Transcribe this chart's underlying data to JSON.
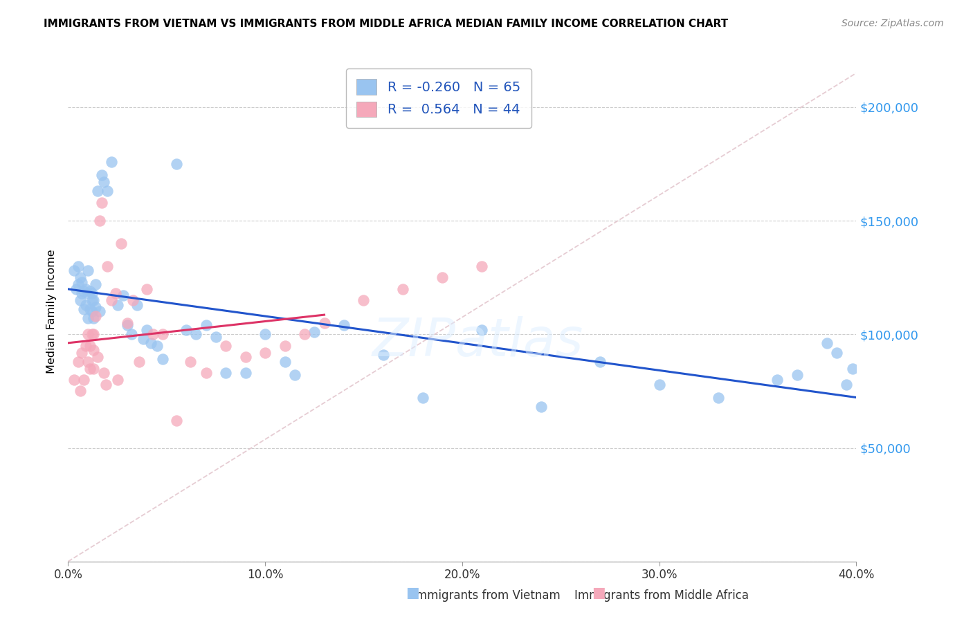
{
  "title": "IMMIGRANTS FROM VIETNAM VS IMMIGRANTS FROM MIDDLE AFRICA MEDIAN FAMILY INCOME CORRELATION CHART",
  "source": "Source: ZipAtlas.com",
  "ylabel": "Median Family Income",
  "legend_label_blue": "Immigrants from Vietnam",
  "legend_label_pink": "Immigrants from Middle Africa",
  "R_blue": -0.26,
  "N_blue": 65,
  "R_pink": 0.564,
  "N_pink": 44,
  "xlim": [
    0.0,
    0.4
  ],
  "ylim": [
    0,
    220000
  ],
  "yticks": [
    0,
    50000,
    100000,
    150000,
    200000
  ],
  "xtick_labels": [
    "0.0%",
    "10.0%",
    "20.0%",
    "30.0%",
    "40.0%"
  ],
  "xticks": [
    0.0,
    0.1,
    0.2,
    0.3,
    0.4
  ],
  "color_blue": "#99C4F0",
  "color_pink": "#F5A8BA",
  "line_blue": "#2255CC",
  "line_pink": "#DD3366",
  "line_ref_color": "#E0C0C8",
  "watermark": "ZIPatlas",
  "blue_x": [
    0.003,
    0.004,
    0.005,
    0.005,
    0.006,
    0.006,
    0.007,
    0.007,
    0.008,
    0.008,
    0.009,
    0.009,
    0.01,
    0.01,
    0.01,
    0.011,
    0.011,
    0.012,
    0.012,
    0.012,
    0.013,
    0.013,
    0.014,
    0.014,
    0.015,
    0.016,
    0.017,
    0.018,
    0.02,
    0.022,
    0.025,
    0.028,
    0.03,
    0.032,
    0.035,
    0.038,
    0.04,
    0.042,
    0.045,
    0.048,
    0.055,
    0.06,
    0.065,
    0.07,
    0.075,
    0.08,
    0.09,
    0.1,
    0.11,
    0.115,
    0.125,
    0.14,
    0.16,
    0.18,
    0.21,
    0.24,
    0.27,
    0.3,
    0.33,
    0.36,
    0.37,
    0.385,
    0.39,
    0.395,
    0.398
  ],
  "blue_y": [
    128000,
    120000,
    122000,
    130000,
    115000,
    125000,
    118000,
    123000,
    111000,
    119000,
    113000,
    120000,
    107000,
    118000,
    128000,
    111000,
    119000,
    110000,
    115000,
    118000,
    107000,
    115000,
    112000,
    122000,
    163000,
    110000,
    170000,
    167000,
    163000,
    176000,
    113000,
    117000,
    104000,
    100000,
    113000,
    98000,
    102000,
    96000,
    95000,
    89000,
    175000,
    102000,
    100000,
    104000,
    99000,
    83000,
    83000,
    100000,
    88000,
    82000,
    101000,
    104000,
    91000,
    72000,
    102000,
    68000,
    88000,
    78000,
    72000,
    80000,
    82000,
    96000,
    92000,
    78000,
    85000
  ],
  "pink_x": [
    0.003,
    0.005,
    0.006,
    0.007,
    0.008,
    0.009,
    0.01,
    0.01,
    0.011,
    0.011,
    0.012,
    0.013,
    0.013,
    0.013,
    0.014,
    0.015,
    0.016,
    0.017,
    0.018,
    0.019,
    0.02,
    0.022,
    0.024,
    0.025,
    0.027,
    0.03,
    0.033,
    0.036,
    0.04,
    0.043,
    0.048,
    0.055,
    0.062,
    0.07,
    0.08,
    0.09,
    0.1,
    0.11,
    0.12,
    0.13,
    0.15,
    0.17,
    0.19,
    0.21
  ],
  "pink_y": [
    80000,
    88000,
    75000,
    92000,
    80000,
    95000,
    100000,
    88000,
    85000,
    95000,
    100000,
    85000,
    93000,
    100000,
    108000,
    90000,
    150000,
    158000,
    83000,
    78000,
    130000,
    115000,
    118000,
    80000,
    140000,
    105000,
    115000,
    88000,
    120000,
    100000,
    100000,
    62000,
    88000,
    83000,
    95000,
    90000,
    92000,
    95000,
    100000,
    105000,
    115000,
    120000,
    125000,
    130000
  ]
}
